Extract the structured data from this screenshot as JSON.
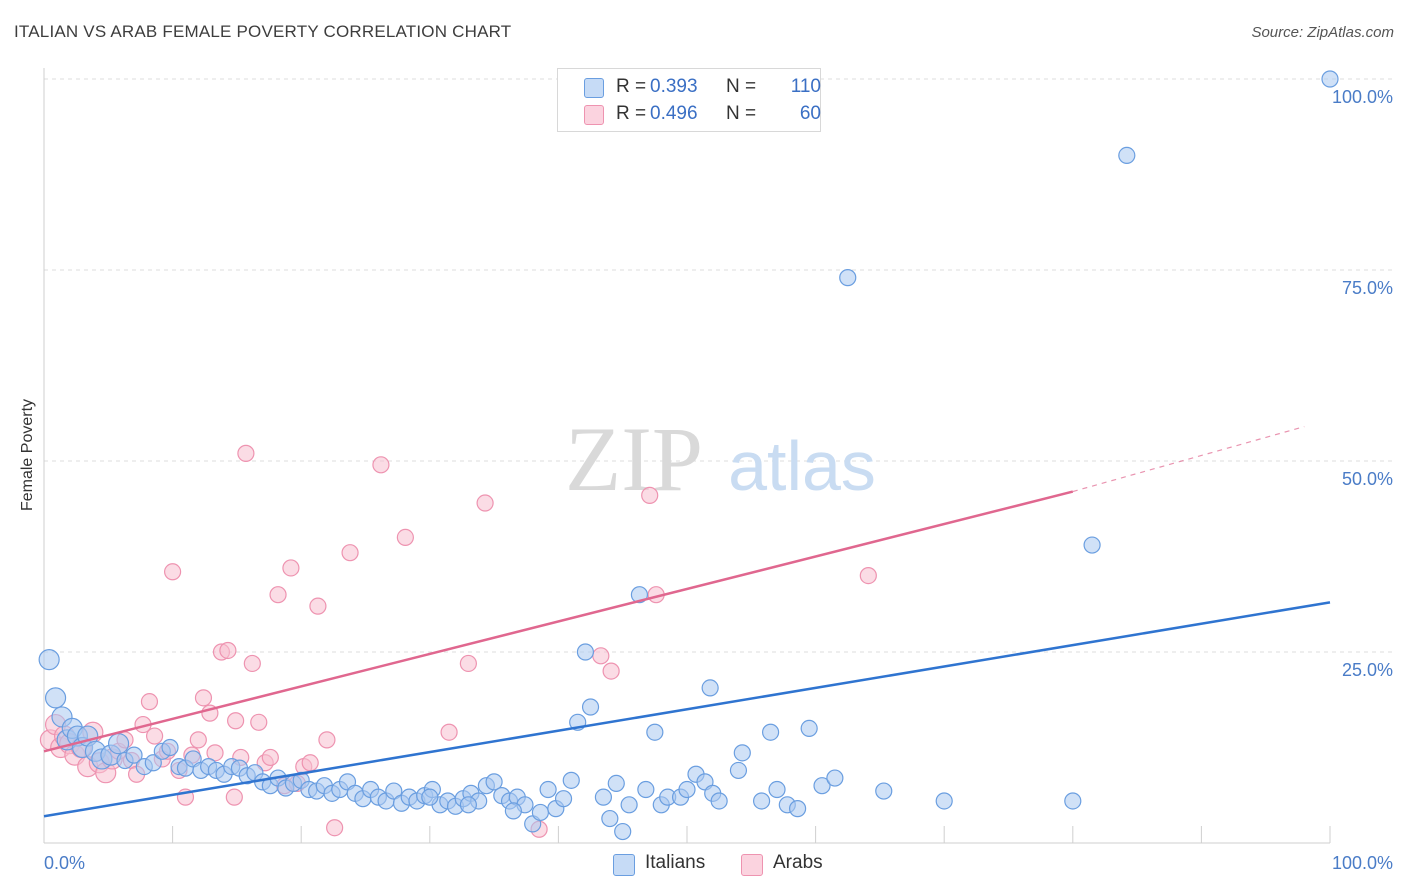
{
  "header": {
    "title": "ITALIAN VS ARAB FEMALE POVERTY CORRELATION CHART",
    "source": "Source: ZipAtlas.com"
  },
  "watermark": {
    "zip": "ZIP",
    "atlas": "atlas"
  },
  "colors": {
    "italians_fill": "#a9c8f0",
    "italians_stroke": "#6a9ee0",
    "italians_line": "#2f74d0",
    "arabs_fill": "#f7bfd0",
    "arabs_stroke": "#ee93b0",
    "arabs_line": "#e0678f",
    "tick": "#4a7cc7",
    "grid": "#dddddd"
  },
  "legend": {
    "rows": [
      {
        "r_label": "R =",
        "r_value": "0.393",
        "n_label": "N =",
        "n_value": "110"
      },
      {
        "r_label": "R =",
        "r_value": "0.496",
        "n_label": "N =",
        "n_value": "60"
      }
    ]
  },
  "chart_data": {
    "type": "scatter",
    "title": "ITALIAN VS ARAB FEMALE POVERTY CORRELATION CHART",
    "xlabel": "",
    "ylabel": "Female Poverty",
    "xlim": [
      0,
      100
    ],
    "ylim": [
      0,
      100
    ],
    "x_tick_labels": [
      "0.0%",
      "100.0%"
    ],
    "y_ticks": [
      25,
      50,
      75,
      100
    ],
    "y_tick_labels": [
      "25.0%",
      "50.0%",
      "75.0%",
      "100.0%"
    ],
    "grid": true,
    "legend_position": "bottom",
    "series": [
      {
        "name": "Italians",
        "r": 0.393,
        "n": 110,
        "trend": {
          "x0": 0,
          "y0": 3.5,
          "x1": 100,
          "y1": 31.5
        },
        "points": [
          [
            0.4,
            24
          ],
          [
            0.9,
            19
          ],
          [
            1.4,
            16.5
          ],
          [
            1.8,
            13.5
          ],
          [
            2.2,
            15
          ],
          [
            2.6,
            14
          ],
          [
            3,
            12.5
          ],
          [
            3.4,
            14
          ],
          [
            4,
            12
          ],
          [
            4.5,
            11
          ],
          [
            5.2,
            11.5
          ],
          [
            5.8,
            13
          ],
          [
            6.3,
            10.8
          ],
          [
            7,
            11.5
          ],
          [
            7.8,
            10
          ],
          [
            8.5,
            10.5
          ],
          [
            9.2,
            12
          ],
          [
            9.8,
            12.5
          ],
          [
            10.5,
            10
          ],
          [
            11,
            9.8
          ],
          [
            11.6,
            11
          ],
          [
            12.2,
            9.5
          ],
          [
            12.8,
            10
          ],
          [
            13.4,
            9.5
          ],
          [
            14,
            9
          ],
          [
            14.6,
            10
          ],
          [
            15.2,
            9.8
          ],
          [
            15.8,
            8.8
          ],
          [
            16.4,
            9.2
          ],
          [
            17,
            8
          ],
          [
            17.6,
            7.5
          ],
          [
            18.2,
            8.5
          ],
          [
            18.8,
            7.2
          ],
          [
            19.4,
            7.8
          ],
          [
            20,
            8.2
          ],
          [
            20.6,
            7
          ],
          [
            21.2,
            6.8
          ],
          [
            21.8,
            7.5
          ],
          [
            22.4,
            6.5
          ],
          [
            23,
            7
          ],
          [
            23.6,
            8
          ],
          [
            24.2,
            6.5
          ],
          [
            24.8,
            5.8
          ],
          [
            25.4,
            7
          ],
          [
            26,
            6
          ],
          [
            26.6,
            5.5
          ],
          [
            27.2,
            6.8
          ],
          [
            27.8,
            5.2
          ],
          [
            28.4,
            6
          ],
          [
            29,
            5.5
          ],
          [
            29.6,
            6.2
          ],
          [
            30.2,
            7
          ],
          [
            30.8,
            5
          ],
          [
            31.4,
            5.5
          ],
          [
            32,
            4.8
          ],
          [
            32.6,
            5.8
          ],
          [
            33.2,
            6.5
          ],
          [
            33.8,
            5.5
          ],
          [
            34.4,
            7.5
          ],
          [
            35,
            8
          ],
          [
            35.6,
            6.2
          ],
          [
            36.2,
            5.5
          ],
          [
            36.8,
            6
          ],
          [
            37.4,
            5
          ],
          [
            38,
            2.5
          ],
          [
            38.6,
            4
          ],
          [
            39.2,
            7
          ],
          [
            39.8,
            4.5
          ],
          [
            40.4,
            5.8
          ],
          [
            41,
            8.2
          ],
          [
            42.1,
            25
          ],
          [
            41.5,
            15.8
          ],
          [
            42.5,
            17.8
          ],
          [
            43.5,
            6
          ],
          [
            44,
            3.2
          ],
          [
            44.5,
            7.8
          ],
          [
            45,
            1.5
          ],
          [
            45.5,
            5
          ],
          [
            46.3,
            32.5
          ],
          [
            46.8,
            7
          ],
          [
            47.5,
            14.5
          ],
          [
            48,
            5
          ],
          [
            48.5,
            6
          ],
          [
            49.5,
            6
          ],
          [
            50,
            7
          ],
          [
            50.7,
            9
          ],
          [
            51.4,
            8
          ],
          [
            51.8,
            20.3
          ],
          [
            52,
            6.5
          ],
          [
            52.5,
            5.5
          ],
          [
            54,
            9.5
          ],
          [
            54.3,
            11.8
          ],
          [
            55.8,
            5.5
          ],
          [
            56.5,
            14.5
          ],
          [
            57,
            7
          ],
          [
            57.8,
            5
          ],
          [
            58.6,
            4.5
          ],
          [
            59.5,
            15
          ],
          [
            60.5,
            7.5
          ],
          [
            61.5,
            8.5
          ],
          [
            62.5,
            74
          ],
          [
            65.3,
            6.8
          ],
          [
            70,
            5.5
          ],
          [
            80,
            5.5
          ],
          [
            81.5,
            39
          ],
          [
            84.2,
            90
          ],
          [
            100,
            100
          ],
          [
            30,
            6
          ],
          [
            33,
            5
          ],
          [
            36.5,
            4.2
          ]
        ]
      },
      {
        "name": "Arabs",
        "r": 0.496,
        "n": 60,
        "trend": {
          "x0": 0,
          "y0": 12,
          "x1": 80,
          "y1": 46,
          "dash_x1": 98,
          "dash_y1": 54.5
        },
        "points": [
          [
            0.5,
            13.5
          ],
          [
            0.9,
            15.5
          ],
          [
            1.3,
            12.5
          ],
          [
            1.6,
            14
          ],
          [
            2,
            13
          ],
          [
            2.4,
            11.5
          ],
          [
            2.9,
            12.5
          ],
          [
            3.4,
            10
          ],
          [
            3.8,
            14.5
          ],
          [
            4.3,
            10.5
          ],
          [
            4.8,
            9.2
          ],
          [
            5.3,
            11
          ],
          [
            5.8,
            12
          ],
          [
            6.3,
            13.5
          ],
          [
            6.8,
            10.8
          ],
          [
            7.2,
            9
          ],
          [
            7.7,
            15.5
          ],
          [
            8.2,
            18.5
          ],
          [
            8.6,
            14
          ],
          [
            9.2,
            11
          ],
          [
            9.6,
            12
          ],
          [
            10,
            35.5
          ],
          [
            10.5,
            9.5
          ],
          [
            11,
            6
          ],
          [
            11.5,
            11.5
          ],
          [
            12,
            13.5
          ],
          [
            12.4,
            19
          ],
          [
            12.9,
            17
          ],
          [
            13.3,
            11.8
          ],
          [
            13.8,
            25
          ],
          [
            14.3,
            25.2
          ],
          [
            14.8,
            6
          ],
          [
            14.9,
            16
          ],
          [
            15.3,
            11.2
          ],
          [
            15.7,
            51
          ],
          [
            16.2,
            23.5
          ],
          [
            16.7,
            15.8
          ],
          [
            17.2,
            10.5
          ],
          [
            17.6,
            11.2
          ],
          [
            18.2,
            32.5
          ],
          [
            18.7,
            7.5
          ],
          [
            19.2,
            36
          ],
          [
            19.7,
            7.8
          ],
          [
            20.2,
            10
          ],
          [
            20.7,
            10.5
          ],
          [
            21.3,
            31
          ],
          [
            22,
            13.5
          ],
          [
            22.6,
            2
          ],
          [
            23.8,
            38
          ],
          [
            26.2,
            49.5
          ],
          [
            28.1,
            40
          ],
          [
            31.5,
            14.5
          ],
          [
            33,
            23.5
          ],
          [
            34.3,
            44.5
          ],
          [
            38.5,
            1.8
          ],
          [
            43.3,
            24.5
          ],
          [
            44.1,
            22.5
          ],
          [
            47.1,
            45.5
          ],
          [
            47.6,
            32.5
          ],
          [
            64.1,
            35
          ]
        ]
      }
    ]
  },
  "bottom_legend": {
    "italians": "Italians",
    "arabs": "Arabs"
  }
}
